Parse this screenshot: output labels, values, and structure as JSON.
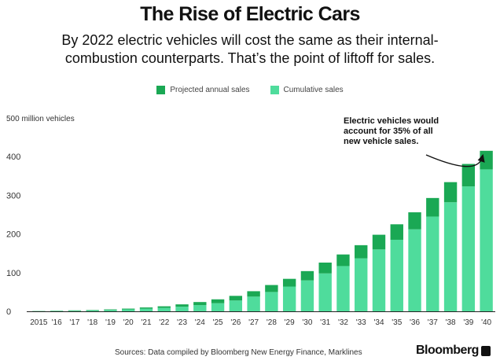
{
  "header": {
    "title": "The Rise of Electric Cars",
    "subtitle_line1": "By 2022 electric vehicles will cost the same as their internal-",
    "subtitle_line2": "combustion counterparts. That’s the point of liftoff for sales."
  },
  "footer": {
    "source": "Sources: Data compiled by Bloomberg New Energy Finance, Marklines",
    "brand": "Bloomberg"
  },
  "chart_data": {
    "type": "bar",
    "stacked": true,
    "ylabel": "500 million vehicles",
    "ylim": [
      0,
      500
    ],
    "yticks": [
      0,
      100,
      200,
      300,
      400
    ],
    "categories": [
      "2015",
      "'16",
      "'17",
      "'18",
      "'19",
      "'20",
      "'21",
      "'22",
      "'23",
      "'24",
      "'25",
      "'26",
      "'27",
      "'28",
      "'29",
      "'30",
      "'31",
      "'32",
      "'33",
      "'34",
      "'35",
      "'36",
      "'37",
      "'38",
      "'39",
      "'40"
    ],
    "series": [
      {
        "name": "Cumulative sales",
        "color": "#4fdc9c",
        "values": [
          0.5,
          1,
          1.5,
          2.5,
          3.5,
          5,
          7,
          9,
          12,
          16,
          21,
          28,
          38,
          50,
          64,
          80,
          98,
          117,
          137,
          160,
          185,
          212,
          245,
          282,
          323,
          367
        ]
      },
      {
        "name": "Projected annual sales",
        "color": "#1aa854",
        "values": [
          0.5,
          0.5,
          1,
          1,
          1.5,
          2,
          3,
          4,
          6,
          8,
          10,
          12,
          14,
          18,
          20,
          24,
          28,
          30,
          34,
          38,
          40,
          44,
          48,
          52,
          58,
          48
        ]
      }
    ],
    "legend_position": "top-center",
    "grid": false,
    "annotation": {
      "lines": [
        "Electric vehicles would",
        "account for 35% of all",
        "new vehicle sales."
      ],
      "target_category": "'40"
    }
  }
}
